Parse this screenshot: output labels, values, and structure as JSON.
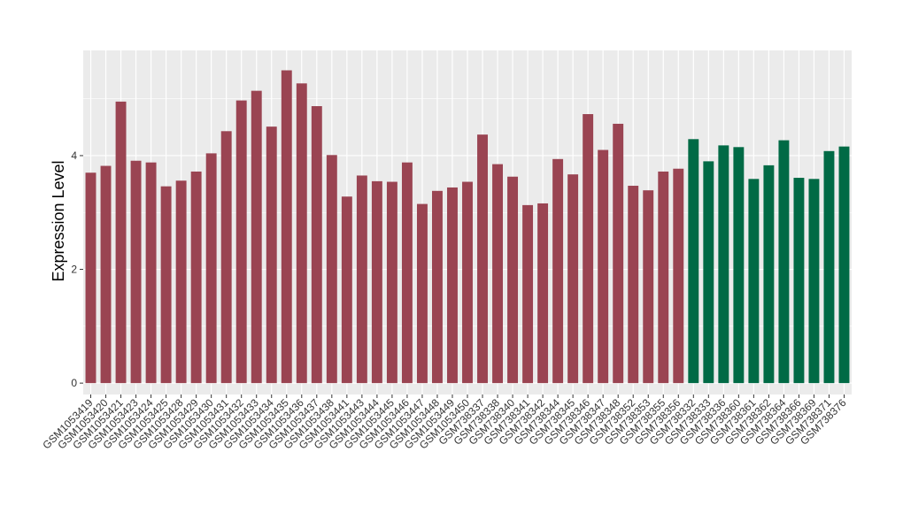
{
  "chart_data": {
    "type": "bar",
    "ylabel": "Expression Level",
    "xlabel": "",
    "ylim": [
      -0.2,
      5.85
    ],
    "yticks": [
      0,
      2,
      4
    ],
    "grid": true,
    "legend": "none",
    "colors": {
      "group1": "#9A4452",
      "group2": "#006A45",
      "panel": "#EBEBEB",
      "grid": "#FFFFFF"
    },
    "categories": [
      "GSM1053419",
      "GSM1053420",
      "GSM1053421",
      "GSM1053423",
      "GSM1053424",
      "GSM1053425",
      "GSM1053428",
      "GSM1053429",
      "GSM1053430",
      "GSM1053431",
      "GSM1053432",
      "GSM1053433",
      "GSM1053434",
      "GSM1053435",
      "GSM1053436",
      "GSM1053437",
      "GSM1053438",
      "GSM1053441",
      "GSM1053443",
      "GSM1053444",
      "GSM1053445",
      "GSM1053446",
      "GSM1053447",
      "GSM1053448",
      "GSM1053449",
      "GSM1053450",
      "GSM738337",
      "GSM738338",
      "GSM738340",
      "GSM738341",
      "GSM738342",
      "GSM738344",
      "GSM738345",
      "GSM738346",
      "GSM738347",
      "GSM738348",
      "GSM738352",
      "GSM738353",
      "GSM738355",
      "GSM738356",
      "GSM738332",
      "GSM738333",
      "GSM738336",
      "GSM738360",
      "GSM738361",
      "GSM738362",
      "GSM738364",
      "GSM738366",
      "GSM738369",
      "GSM738371",
      "GSM738376"
    ],
    "values": [
      3.7,
      3.82,
      4.95,
      3.91,
      3.88,
      3.46,
      3.56,
      3.72,
      4.04,
      4.43,
      4.97,
      5.14,
      4.51,
      5.5,
      5.27,
      4.87,
      4.01,
      3.28,
      3.65,
      3.55,
      3.54,
      3.88,
      3.15,
      3.38,
      3.44,
      3.54,
      4.37,
      3.85,
      3.63,
      3.13,
      3.16,
      3.94,
      3.67,
      4.73,
      4.1,
      4.56,
      3.47,
      3.39,
      3.72,
      3.77,
      4.29,
      3.9,
      4.18,
      4.15,
      3.59,
      3.83,
      4.27,
      3.61,
      3.59,
      4.08,
      4.16
    ],
    "groups": [
      "group1",
      "group1",
      "group1",
      "group1",
      "group1",
      "group1",
      "group1",
      "group1",
      "group1",
      "group1",
      "group1",
      "group1",
      "group1",
      "group1",
      "group1",
      "group1",
      "group1",
      "group1",
      "group1",
      "group1",
      "group1",
      "group1",
      "group1",
      "group1",
      "group1",
      "group1",
      "group1",
      "group1",
      "group1",
      "group1",
      "group1",
      "group1",
      "group1",
      "group1",
      "group1",
      "group1",
      "group1",
      "group1",
      "group1",
      "group1",
      "group2",
      "group2",
      "group2",
      "group2",
      "group2",
      "group2",
      "group2",
      "group2",
      "group2",
      "group2",
      "group2"
    ]
  }
}
